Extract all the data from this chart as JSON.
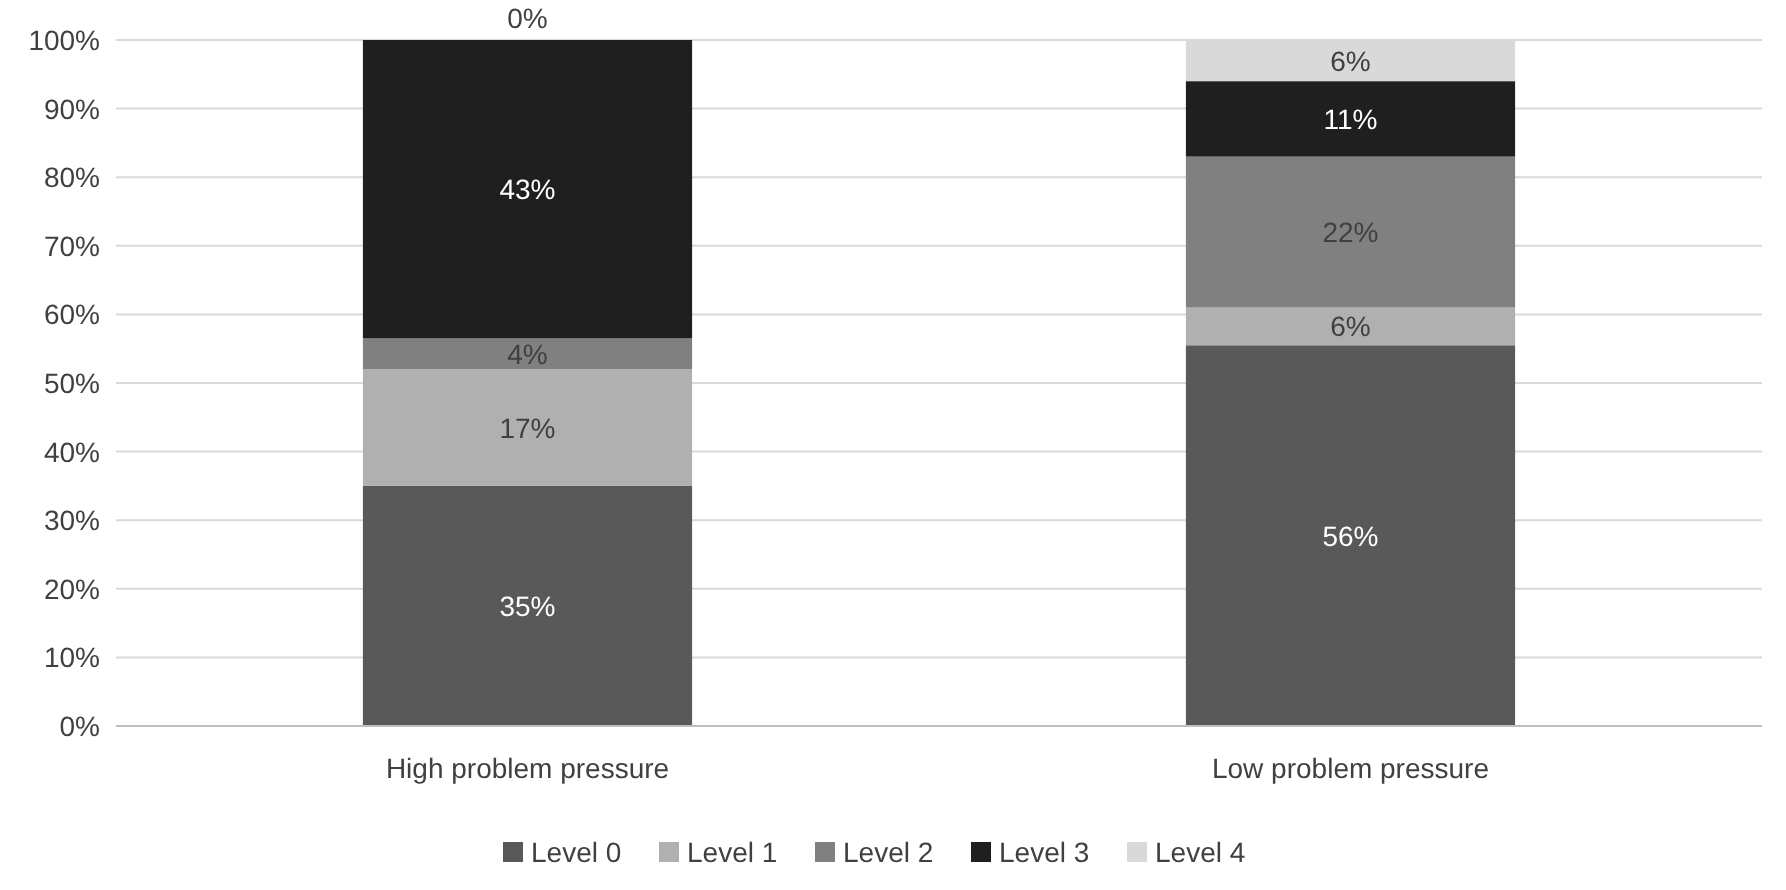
{
  "chart_data": {
    "type": "bar",
    "stacked": true,
    "categories": [
      "High problem pressure",
      "Low problem pressure"
    ],
    "series": [
      {
        "name": "Level 0",
        "color": "#595959",
        "values": [
          35,
          55.5
        ],
        "value_labels": [
          "35%",
          "56%"
        ]
      },
      {
        "name": "Level 1",
        "color": "#b0b0b0",
        "values": [
          17,
          5.5
        ],
        "value_labels": [
          "17%",
          "6%"
        ]
      },
      {
        "name": "Level 2",
        "color": "#808080",
        "values": [
          4.5,
          22
        ],
        "value_labels": [
          "4%",
          "22%"
        ]
      },
      {
        "name": "Level 3",
        "color": "#1f1f1f",
        "values": [
          43.5,
          11
        ],
        "value_labels": [
          "43%",
          "11%"
        ]
      },
      {
        "name": "Level 4",
        "color": "#d9d9d9",
        "values": [
          0,
          6
        ],
        "value_labels": [
          "0%",
          "6%"
        ]
      }
    ],
    "ylim": [
      0,
      100
    ],
    "yticks": [
      {
        "value": 0,
        "label": "0%"
      },
      {
        "value": 10,
        "label": "10%"
      },
      {
        "value": 20,
        "label": "20%"
      },
      {
        "value": 30,
        "label": "30%"
      },
      {
        "value": 40,
        "label": "40%"
      },
      {
        "value": 50,
        "label": "50%"
      },
      {
        "value": 60,
        "label": "60%"
      },
      {
        "value": 70,
        "label": "70%"
      },
      {
        "value": 80,
        "label": "80%"
      },
      {
        "value": 90,
        "label": "90%"
      },
      {
        "value": 100,
        "label": "100%"
      }
    ],
    "grid": "y",
    "legend": "bottom"
  }
}
